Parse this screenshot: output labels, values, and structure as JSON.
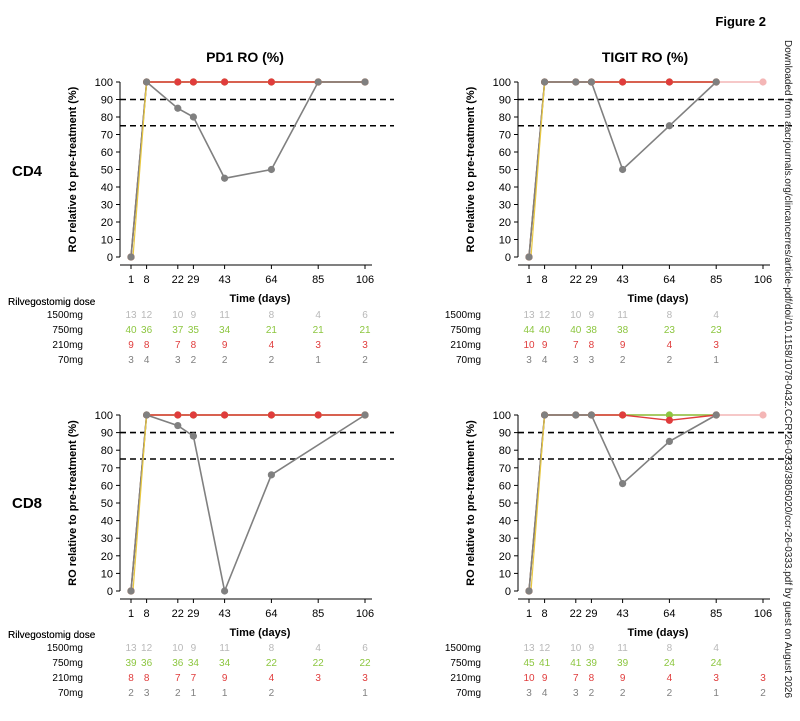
{
  "figure_label": "Figure 2",
  "watermark": "Downloaded from aacrjournals.org/clincancerres/article-pdf/doi/10.1158/1078-0432.CCR-26-0333/3805020/ccr-26-0333.pdf by guest on August 2026",
  "row_labels": [
    "CD4",
    "CD8"
  ],
  "column_titles": [
    "PD1 RO (%)",
    "TIGIT RO (%)"
  ],
  "dose_header": "Rilvegostomig dose",
  "dose_labels": [
    "1500mg",
    "750mg",
    "210mg",
    "70mg"
  ],
  "colors": {
    "1500mg": "#f4b6b6",
    "750mg": "#8cc63f",
    "210mg": "#e03c3c",
    "70mg": "#808080",
    "1500mg_count": "#b8b8b8",
    "dose_line_yellow": "#e8c840",
    "reference_line": "#000000"
  },
  "chart_data": [
    {
      "type": "line",
      "row": "CD4",
      "title": "PD1 RO (%)",
      "xlabel": "Time (days)",
      "ylabel": "RO relative to pre-treatment (%)",
      "x": [
        1,
        8,
        22,
        29,
        43,
        64,
        85,
        106
      ],
      "ylim": [
        0,
        100
      ],
      "yticks": [
        0,
        10,
        20,
        30,
        40,
        50,
        60,
        70,
        80,
        90,
        100
      ],
      "reference_lines": [
        90,
        75
      ],
      "series": [
        {
          "name": "1500mg",
          "values": [
            0,
            100,
            100,
            100,
            100,
            100,
            100,
            100
          ]
        },
        {
          "name": "750mg",
          "values": [
            0,
            100,
            100,
            100,
            100,
            100,
            100,
            100
          ]
        },
        {
          "name": "210mg",
          "values": [
            0,
            100,
            100,
            100,
            100,
            100,
            100,
            100
          ]
        },
        {
          "name": "70mg",
          "values": [
            0,
            100,
            85,
            80,
            45,
            50,
            100,
            100
          ]
        }
      ],
      "counts": {
        "1500mg": [
          "13",
          "12",
          "10",
          "9",
          "11",
          "8",
          "4",
          "6"
        ],
        "750mg": [
          "40",
          "36",
          "37",
          "35",
          "34",
          "21",
          "21",
          "21"
        ],
        "210mg": [
          "9",
          "8",
          "7",
          "8",
          "9",
          "4",
          "3",
          "3"
        ],
        "70mg": [
          "3",
          "4",
          "3",
          "2",
          "2",
          "2",
          "1",
          "2"
        ]
      }
    },
    {
      "type": "line",
      "row": "CD4",
      "title": "TIGIT RO (%)",
      "xlabel": "Time (days)",
      "ylabel": "RO relative to pre-treatment (%)",
      "x": [
        1,
        8,
        22,
        29,
        43,
        64,
        85,
        106
      ],
      "ylim": [
        0,
        100
      ],
      "yticks": [
        0,
        10,
        20,
        30,
        40,
        50,
        60,
        70,
        80,
        90,
        100
      ],
      "reference_lines": [
        90,
        75
      ],
      "series": [
        {
          "name": "1500mg",
          "values": [
            0,
            100,
            100,
            100,
            100,
            100,
            100,
            100
          ]
        },
        {
          "name": "750mg",
          "values": [
            0,
            100,
            100,
            100,
            100,
            100,
            100,
            null
          ]
        },
        {
          "name": "210mg",
          "values": [
            0,
            100,
            100,
            100,
            100,
            100,
            100,
            null
          ]
        },
        {
          "name": "70mg",
          "values": [
            0,
            100,
            100,
            100,
            50,
            75,
            100,
            null
          ]
        }
      ],
      "counts": {
        "1500mg": [
          "13",
          "12",
          "10",
          "9",
          "11",
          "8",
          "4",
          ""
        ],
        "750mg": [
          "44",
          "40",
          "40",
          "38",
          "38",
          "23",
          "23",
          ""
        ],
        "210mg": [
          "10",
          "9",
          "7",
          "8",
          "9",
          "4",
          "3",
          ""
        ],
        "70mg": [
          "3",
          "4",
          "3",
          "3",
          "2",
          "2",
          "1",
          ""
        ]
      }
    },
    {
      "type": "line",
      "row": "CD8",
      "title": "",
      "xlabel": "Time (days)",
      "ylabel": "RO relative to pre-treatment (%)",
      "x": [
        1,
        8,
        22,
        29,
        43,
        64,
        85,
        106
      ],
      "ylim": [
        0,
        100
      ],
      "yticks": [
        0,
        10,
        20,
        30,
        40,
        50,
        60,
        70,
        80,
        90,
        100
      ],
      "reference_lines": [
        90,
        75
      ],
      "series": [
        {
          "name": "1500mg",
          "values": [
            0,
            100,
            100,
            100,
            100,
            100,
            100,
            100
          ]
        },
        {
          "name": "750mg",
          "values": [
            0,
            100,
            100,
            100,
            100,
            100,
            100,
            100
          ]
        },
        {
          "name": "210mg",
          "values": [
            0,
            100,
            100,
            100,
            100,
            100,
            100,
            100
          ]
        },
        {
          "name": "70mg",
          "values": [
            0,
            100,
            94,
            88,
            0,
            66,
            null,
            100
          ]
        }
      ],
      "counts": {
        "1500mg": [
          "13",
          "12",
          "10",
          "9",
          "11",
          "8",
          "4",
          "6"
        ],
        "750mg": [
          "39",
          "36",
          "36",
          "34",
          "34",
          "22",
          "22",
          "22"
        ],
        "210mg": [
          "8",
          "8",
          "7",
          "7",
          "9",
          "4",
          "3",
          "3"
        ],
        "70mg": [
          "2",
          "3",
          "2",
          "1",
          "1",
          "2",
          "",
          "1"
        ]
      }
    },
    {
      "type": "line",
      "row": "CD8",
      "title": "",
      "xlabel": "Time (days)",
      "ylabel": "RO relative to pre-treatment (%)",
      "x": [
        1,
        8,
        22,
        29,
        43,
        64,
        85,
        106
      ],
      "ylim": [
        0,
        100
      ],
      "yticks": [
        0,
        10,
        20,
        30,
        40,
        50,
        60,
        70,
        80,
        90,
        100
      ],
      "reference_lines": [
        90,
        75
      ],
      "series": [
        {
          "name": "1500mg",
          "values": [
            0,
            100,
            100,
            100,
            100,
            100,
            100,
            100
          ]
        },
        {
          "name": "750mg",
          "values": [
            0,
            100,
            100,
            100,
            100,
            100,
            100,
            null
          ]
        },
        {
          "name": "210mg",
          "values": [
            0,
            100,
            100,
            100,
            100,
            97,
            100,
            null
          ]
        },
        {
          "name": "70mg",
          "values": [
            0,
            100,
            100,
            100,
            61,
            85,
            100,
            null
          ]
        }
      ],
      "counts": {
        "1500mg": [
          "13",
          "12",
          "10",
          "9",
          "11",
          "8",
          "4",
          ""
        ],
        "750mg": [
          "45",
          "41",
          "41",
          "39",
          "39",
          "24",
          "24",
          ""
        ],
        "210mg": [
          "10",
          "9",
          "7",
          "8",
          "9",
          "4",
          "3",
          "3"
        ],
        "70mg": [
          "3",
          "4",
          "3",
          "2",
          "2",
          "2",
          "1",
          "2"
        ]
      }
    }
  ]
}
